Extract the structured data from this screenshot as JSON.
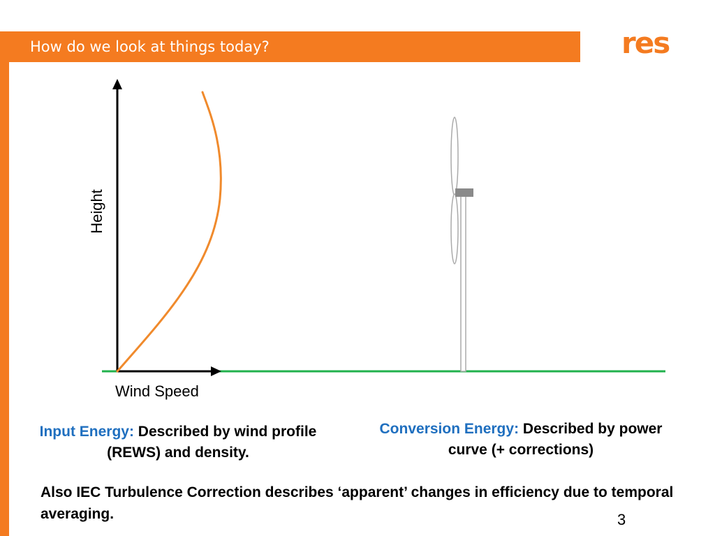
{
  "slide": {
    "title": "How do we look at things today?",
    "page_number": "3"
  },
  "logo": {
    "text": "res",
    "color": "#f47b20"
  },
  "diagram": {
    "y_axis_label": "Height",
    "x_axis_label": "Wind Speed",
    "colors": {
      "accent": "#f47b20",
      "profile_curve": "#f08a2c",
      "ground_line": "#22b14c",
      "turbine": "#c8c8c8",
      "nacelle": "#8a8a8a"
    },
    "icons": [
      "wind-turbine-icon"
    ]
  },
  "captions": {
    "input": {
      "lead": "Input Energy:",
      "text": " Described by wind profile (REWS) and density."
    },
    "conversion": {
      "lead": "Conversion Energy:",
      "text": " Described by power curve (+ corrections)"
    }
  },
  "footnote": "Also IEC Turbulence Correction describes ‘apparent’ changes in efficiency due to temporal averaging."
}
